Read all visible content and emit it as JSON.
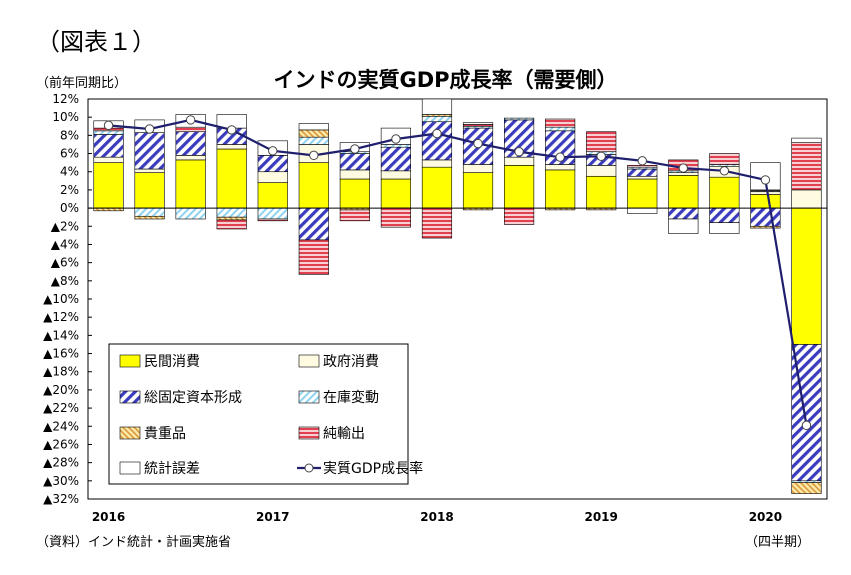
{
  "figure_label": "（図表１）",
  "unit_label": "（前年同期比）",
  "source": "（資料）インド統計・計画実施省",
  "period_label": "（四半期）",
  "chart_data": {
    "type": "bar",
    "stacked": true,
    "title": "インドの実質GDP成長率（需要側）",
    "ylim": [
      -32,
      12
    ],
    "yticks": [
      12,
      10,
      8,
      6,
      4,
      2,
      0,
      -2,
      -4,
      -6,
      -8,
      -10,
      -12,
      -14,
      -16,
      -18,
      -20,
      -22,
      -24,
      -26,
      -28,
      -30,
      -32
    ],
    "ytick_labels": [
      "12%",
      "10%",
      "8%",
      "6%",
      "4%",
      "2%",
      "0%",
      "▲2%",
      "▲4%",
      "▲6%",
      "▲8%",
      "▲10%",
      "▲12%",
      "▲14%",
      "▲16%",
      "▲18%",
      "▲20%",
      "▲22%",
      "▲24%",
      "▲26%",
      "▲28%",
      "▲30%",
      "▲32%"
    ],
    "year_labels": [
      "2016",
      "2017",
      "2018",
      "2019",
      "2020"
    ],
    "categories": [
      "2016Q1",
      "2016Q2",
      "2016Q3",
      "2016Q4",
      "2017Q1",
      "2017Q2",
      "2017Q3",
      "2017Q4",
      "2018Q1",
      "2018Q2",
      "2018Q3",
      "2018Q4",
      "2019Q1",
      "2019Q2",
      "2019Q3",
      "2019Q4",
      "2020Q1",
      "2020Q2"
    ],
    "legend_position": "bottom-left",
    "grid": false,
    "series": [
      {
        "name": "民間消費",
        "style": "private",
        "color": "#ffff00",
        "values": [
          5.0,
          3.9,
          5.3,
          6.5,
          2.8,
          5.0,
          3.2,
          3.2,
          4.5,
          3.9,
          4.7,
          4.2,
          3.5,
          3.2,
          3.6,
          3.4,
          1.5,
          -15.0
        ]
      },
      {
        "name": "政府消費",
        "style": "gov",
        "color": "#fffbe0",
        "values": [
          0.6,
          0.4,
          0.5,
          0.5,
          1.2,
          2.0,
          1.0,
          0.9,
          0.8,
          0.9,
          0.9,
          0.6,
          1.2,
          0.3,
          0.3,
          1.2,
          0.3,
          2.0
        ]
      },
      {
        "name": "総固定資本形成",
        "style": "gfcf",
        "color": "#3b3bbd",
        "values": [
          2.5,
          4.0,
          2.6,
          1.8,
          1.8,
          -3.5,
          1.8,
          2.6,
          4.2,
          4.0,
          4.1,
          3.7,
          1.2,
          0.8,
          -1.2,
          -1.6,
          -2.0,
          -15.0
        ]
      },
      {
        "name": "在庫変動",
        "style": "inv",
        "color": "#8fd3ef",
        "values": [
          0.4,
          -0.9,
          -1.2,
          -1.0,
          -1.2,
          0.8,
          0.2,
          0.3,
          0.6,
          0.2,
          0.2,
          0.4,
          0.3,
          0.2,
          0.2,
          0.2,
          0.1,
          -0.2
        ]
      },
      {
        "name": "貴重品",
        "style": "val",
        "color": "#f2c270",
        "values": [
          -0.3,
          -0.3,
          0.0,
          -0.3,
          0.0,
          0.8,
          -0.2,
          0.0,
          0.2,
          -0.2,
          0.0,
          -0.2,
          -0.2,
          0.0,
          0.0,
          0.0,
          -0.2,
          -1.2
        ]
      },
      {
        "name": "純輸出",
        "style": "net",
        "color": "#e04050",
        "values": [
          0.3,
          0.0,
          0.5,
          -1.0,
          -0.2,
          -3.8,
          -1.2,
          -2.1,
          -3.3,
          0.2,
          -1.8,
          0.9,
          2.2,
          0.2,
          1.2,
          1.2,
          0.1,
          5.2
        ]
      },
      {
        "name": "統計誤差",
        "style": "err",
        "color": "#ffffff",
        "values": [
          0.8,
          1.4,
          1.4,
          1.5,
          1.6,
          0.7,
          1.0,
          1.8,
          1.7,
          0.2,
          0.0,
          0.0,
          0.0,
          -0.6,
          -1.6,
          -1.2,
          3.0,
          0.5
        ]
      }
    ],
    "gdp": {
      "name": "実質GDP成長率",
      "color": "#1f1f6e",
      "values": [
        9.1,
        8.7,
        9.7,
        8.6,
        6.3,
        5.8,
        6.5,
        7.6,
        8.2,
        7.1,
        6.2,
        5.6,
        5.7,
        5.2,
        4.4,
        4.1,
        3.1,
        -23.9
      ]
    }
  }
}
